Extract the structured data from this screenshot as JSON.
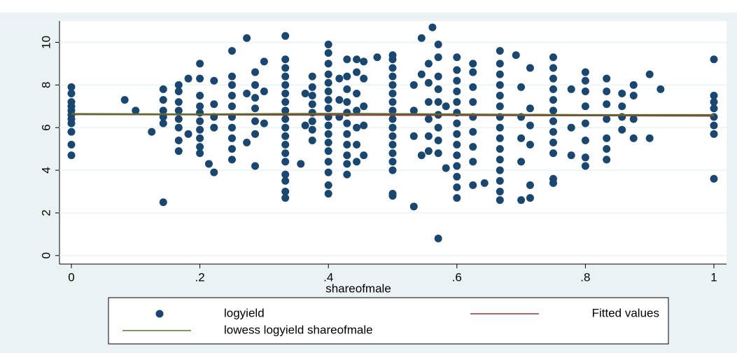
{
  "chart_data": {
    "type": "scatter",
    "xlabel": "shareofmale",
    "xlim": [
      -0.0185,
      1.0196
    ],
    "ylim": [
      -0.4,
      11
    ],
    "xticks": [
      0,
      {
        "value": 0.2,
        "label": ".2"
      },
      {
        "value": 0.4,
        "label": ".4"
      },
      {
        "value": 0.6,
        "label": ".6"
      },
      {
        "value": 0.8,
        "label": ".8"
      },
      1
    ],
    "yticks": [
      0,
      2,
      4,
      6,
      8,
      10
    ],
    "grid": true,
    "legend": "bottom",
    "series": [
      {
        "name": "logyield",
        "type": "scatter",
        "color": "#1a476f",
        "x": [
          0,
          0,
          0,
          0,
          0,
          0,
          0,
          0,
          0,
          0,
          0,
          0.083,
          0.1,
          0.125,
          0.143,
          0.143,
          0.143,
          0.143,
          0.143,
          0.143,
          0.167,
          0.167,
          0.167,
          0.167,
          0.167,
          0.167,
          0.167,
          0.167,
          0.182,
          0.182,
          0.2,
          0.2,
          0.2,
          0.2,
          0.2,
          0.2,
          0.2,
          0.2,
          0.2,
          0.2,
          0.214,
          0.222,
          0.222,
          0.222,
          0.222,
          0.222,
          0.25,
          0.25,
          0.25,
          0.25,
          0.25,
          0.25,
          0.25,
          0.25,
          0.25,
          0.25,
          0.273,
          0.273,
          0.273,
          0.286,
          0.286,
          0.286,
          0.286,
          0.286,
          0.286,
          0.286,
          0.3,
          0.3,
          0.3,
          0.333,
          0.333,
          0.333,
          0.333,
          0.333,
          0.333,
          0.333,
          0.333,
          0.333,
          0.333,
          0.333,
          0.333,
          0.333,
          0.333,
          0.333,
          0.333,
          0.333,
          0.333,
          0.357,
          0.364,
          0.364,
          0.375,
          0.375,
          0.375,
          0.375,
          0.375,
          0.375,
          0.375,
          0.375,
          0.4,
          0.4,
          0.4,
          0.4,
          0.4,
          0.4,
          0.4,
          0.4,
          0.4,
          0.4,
          0.4,
          0.4,
          0.4,
          0.4,
          0.4,
          0.4,
          0.4,
          0.417,
          0.417,
          0.417,
          0.429,
          0.429,
          0.429,
          0.429,
          0.429,
          0.429,
          0.429,
          0.429,
          0.429,
          0.429,
          0.429,
          0.444,
          0.444,
          0.444,
          0.444,
          0.444,
          0.444,
          0.444,
          0.455,
          0.455,
          0.455,
          0.455,
          0.455,
          0.476,
          0.5,
          0.5,
          0.5,
          0.5,
          0.5,
          0.5,
          0.5,
          0.5,
          0.5,
          0.5,
          0.5,
          0.5,
          0.5,
          0.5,
          0.5,
          0.5,
          0.5,
          0.533,
          0.533,
          0.533,
          0.533,
          0.545,
          0.545,
          0.545,
          0.556,
          0.556,
          0.556,
          0.556,
          0.556,
          0.556,
          0.562,
          0.571,
          0.571,
          0.571,
          0.571,
          0.571,
          0.571,
          0.571,
          0.571,
          0.571,
          0.571,
          0.583,
          0.583,
          0.6,
          0.6,
          0.6,
          0.6,
          0.6,
          0.6,
          0.6,
          0.6,
          0.6,
          0.6,
          0.6,
          0.6,
          0.6,
          0.6,
          0.625,
          0.625,
          0.625,
          0.625,
          0.625,
          0.625,
          0.625,
          0.625,
          0.625,
          0.643,
          0.667,
          0.667,
          0.667,
          0.667,
          0.667,
          0.667,
          0.667,
          0.667,
          0.667,
          0.667,
          0.667,
          0.667,
          0.667,
          0.667,
          0.667,
          0.692,
          0.7,
          0.7,
          0.7,
          0.7,
          0.7,
          0.714,
          0.714,
          0.714,
          0.714,
          0.714,
          0.714,
          0.75,
          0.75,
          0.75,
          0.75,
          0.75,
          0.75,
          0.75,
          0.75,
          0.75,
          0.75,
          0.75,
          0.75,
          0.778,
          0.778,
          0.778,
          0.8,
          0.8,
          0.8,
          0.8,
          0.8,
          0.8,
          0.8,
          0.8,
          0.833,
          0.833,
          0.833,
          0.833,
          0.833,
          0.833,
          0.833,
          0.857,
          0.857,
          0.857,
          0.857,
          0.875,
          0.875,
          0.875,
          0.875,
          0.9,
          0.9,
          0.917,
          1,
          1,
          1,
          1,
          1,
          1,
          1,
          1
        ],
        "values": [
          4.7,
          5.2,
          5.8,
          6.2,
          6.4,
          6.6,
          6.8,
          7.0,
          7.2,
          7.6,
          7.9,
          7.3,
          6.8,
          5.8,
          2.5,
          6.2,
          6.5,
          6.8,
          7.3,
          7.8,
          4.9,
          5.4,
          6.0,
          6.4,
          6.8,
          7.2,
          7.7,
          8.0,
          5.7,
          8.3,
          4.8,
          5.1,
          5.5,
          5.9,
          6.3,
          6.7,
          7.0,
          7.5,
          8.3,
          9.0,
          4.3,
          3.9,
          6.0,
          6.5,
          7.1,
          8.2,
          4.5,
          5.0,
          5.5,
          6.0,
          6.5,
          7.0,
          7.5,
          8.0,
          8.4,
          9.6,
          5.3,
          7.6,
          10.2,
          4.2,
          5.7,
          6.3,
          6.9,
          7.4,
          8.0,
          8.6,
          6.2,
          7.7,
          9.1,
          2.7,
          3.0,
          3.5,
          3.8,
          4.4,
          4.8,
          5.2,
          5.6,
          6.0,
          6.4,
          6.8,
          7.2,
          7.6,
          8.0,
          8.4,
          8.8,
          9.2,
          10.3,
          4.3,
          6.1,
          7.6,
          5.4,
          5.9,
          6.3,
          6.7,
          7.1,
          7.5,
          7.9,
          8.4,
          2.9,
          3.3,
          3.9,
          4.4,
          4.9,
          5.3,
          5.7,
          6.1,
          6.5,
          6.9,
          7.3,
          7.7,
          8.1,
          8.5,
          9.0,
          9.5,
          9.9,
          6.5,
          7.3,
          8.3,
          3.8,
          4.3,
          4.7,
          5.2,
          5.7,
          6.2,
          6.7,
          7.2,
          7.8,
          8.4,
          9.2,
          4.4,
          5.2,
          6.0,
          6.8,
          7.6,
          8.6,
          9.2,
          4.7,
          6.1,
          7.0,
          8.3,
          9.1,
          9.3,
          2.8,
          2.9,
          4.0,
          4.4,
          4.8,
          5.2,
          5.6,
          6.0,
          6.4,
          6.8,
          7.2,
          7.6,
          8.0,
          8.4,
          8.8,
          9.2,
          9.4,
          2.3,
          5.6,
          6.8,
          8.0,
          4.7,
          8.5,
          10.2,
          4.9,
          5.6,
          6.4,
          7.2,
          8.1,
          9.0,
          10.7,
          0.8,
          4.8,
          5.4,
          6.0,
          6.6,
          7.2,
          7.8,
          8.4,
          9.3,
          9.9,
          4.1,
          7.0,
          2.7,
          3.2,
          3.7,
          4.2,
          4.7,
          5.2,
          5.7,
          6.2,
          6.7,
          7.2,
          7.7,
          8.2,
          8.7,
          9.3,
          3.3,
          4.4,
          5.1,
          5.8,
          6.5,
          7.2,
          7.9,
          8.6,
          9.0,
          3.4,
          2.6,
          3.0,
          3.5,
          4.0,
          4.5,
          5.0,
          5.5,
          6.0,
          6.5,
          7.0,
          7.5,
          8.0,
          8.5,
          9.0,
          9.6,
          9.4,
          2.6,
          4.4,
          5.5,
          6.5,
          7.9,
          2.7,
          3.3,
          5.2,
          6.1,
          6.9,
          8.8,
          3.4,
          3.6,
          4.8,
          5.3,
          5.8,
          6.3,
          6.8,
          7.3,
          7.8,
          8.3,
          8.8,
          9.3,
          4.7,
          6.0,
          7.8,
          4.2,
          4.6,
          5.4,
          6.2,
          7.0,
          7.7,
          8.2,
          8.6,
          4.5,
          5.0,
          5.5,
          6.4,
          7.1,
          7.7,
          8.3,
          5.9,
          6.5,
          7.0,
          7.6,
          5.5,
          6.4,
          7.5,
          8.0,
          5.5,
          8.5,
          7.8,
          3.6,
          5.7,
          6.1,
          6.5,
          6.9,
          7.2,
          7.5,
          9.2
        ]
      },
      {
        "name": "Fitted values",
        "type": "line",
        "color": "#90353b",
        "x": [
          0,
          1
        ],
        "values": [
          6.62,
          6.55
        ]
      },
      {
        "name": "lowess logyield shareofmale",
        "type": "line",
        "color": "#55752f",
        "x": [
          0,
          0.2,
          0.4,
          0.6,
          0.8,
          1
        ],
        "values": [
          6.65,
          6.63,
          6.66,
          6.63,
          6.6,
          6.6
        ]
      }
    ]
  }
}
